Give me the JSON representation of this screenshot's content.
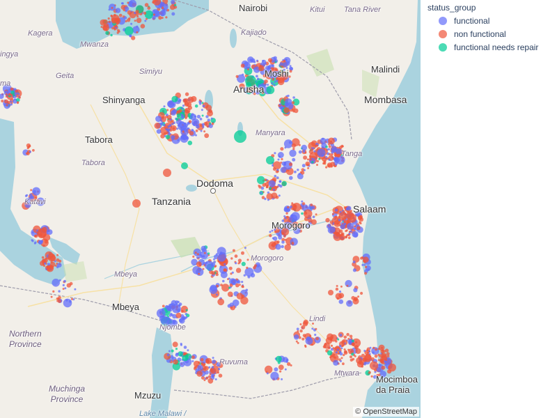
{
  "legend": {
    "title": "status_group",
    "items": [
      {
        "label": "functional",
        "color": "#636efa"
      },
      {
        "label": "non functional",
        "color": "#ef553b"
      },
      {
        "label": "functional needs repair",
        "color": "#00cc96"
      }
    ]
  },
  "attribution": "© OpenStreetMap",
  "map_labels": {
    "nairobi": "Nairobi",
    "kitui": "Kitui",
    "tana_river": "Tana River",
    "kajiado": "Kajiado",
    "kagera": "Kagera",
    "mwanza": "Mwanza",
    "simiyu": "Simiyu",
    "geita": "Geita",
    "arusha": "Arusha",
    "moshi": "Moshi",
    "malindi": "Malindi",
    "mombasa": "Mombasa",
    "shinyanga": "Shinyanga",
    "tabora_city": "Tabora",
    "tabora_region": "Tabora",
    "manyara": "Manyara",
    "tanga": "Tanga",
    "dodoma": "Dodoma",
    "tanzania": "Tanzania",
    "dar_es_salaam": "Salaam",
    "katavi": "Katavi",
    "morogoro": "Morogoro",
    "morogoro_region": "Morogoro",
    "mbeya_region": "Mbeya",
    "mbeya": "Mbeya",
    "lindi": "Lindi",
    "njombe": "Njombe",
    "northern_province": "Northern\nProvince",
    "muchinga_province": "Muchinga\nProvince",
    "mzuzu": "Mzuzu",
    "ruvuma": "Ruvuma",
    "mtwara": "Mtwara",
    "mocimboa": "Mocimboa\nda Praia",
    "lake_malawi": "Lake Malawi /",
    "ingya": "ingya",
    "ma": "ma"
  }
}
